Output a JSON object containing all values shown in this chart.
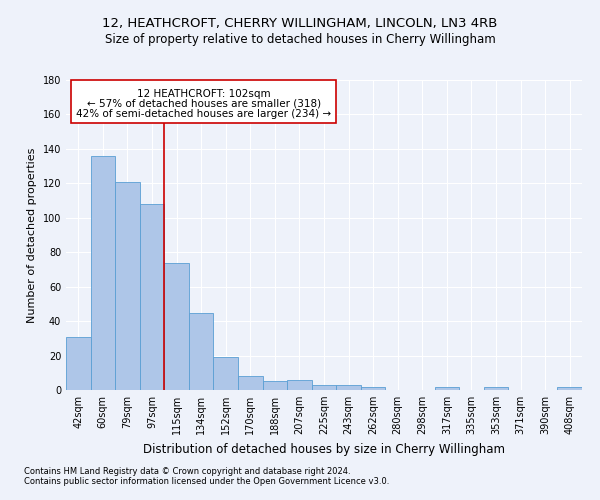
{
  "title1": "12, HEATHCROFT, CHERRY WILLINGHAM, LINCOLN, LN3 4RB",
  "title2": "Size of property relative to detached houses in Cherry Willingham",
  "xlabel": "Distribution of detached houses by size in Cherry Willingham",
  "ylabel": "Number of detached properties",
  "footnote1": "Contains HM Land Registry data © Crown copyright and database right 2024.",
  "footnote2": "Contains public sector information licensed under the Open Government Licence v3.0.",
  "categories": [
    "42sqm",
    "60sqm",
    "79sqm",
    "97sqm",
    "115sqm",
    "134sqm",
    "152sqm",
    "170sqm",
    "188sqm",
    "207sqm",
    "225sqm",
    "243sqm",
    "262sqm",
    "280sqm",
    "298sqm",
    "317sqm",
    "335sqm",
    "353sqm",
    "371sqm",
    "390sqm",
    "408sqm"
  ],
  "values": [
    31,
    136,
    121,
    108,
    74,
    45,
    19,
    8,
    5,
    6,
    3,
    3,
    2,
    0,
    0,
    2,
    0,
    2,
    0,
    0,
    2
  ],
  "bar_color": "#aec6e8",
  "bar_edge_color": "#5a9fd4",
  "vline_x": 3.5,
  "vline_color": "#cc0000",
  "ann_line1": "12 HEATHCROFT: 102sqm",
  "ann_line2": "← 57% of detached houses are smaller (318)",
  "ann_line3": "42% of semi-detached houses are larger (234) →",
  "ylim": [
    0,
    180
  ],
  "yticks": [
    0,
    20,
    40,
    60,
    80,
    100,
    120,
    140,
    160,
    180
  ],
  "background_color": "#eef2fa",
  "grid_color": "#ffffff",
  "title1_fontsize": 9.5,
  "title2_fontsize": 8.5,
  "xlabel_fontsize": 8.5,
  "ylabel_fontsize": 8,
  "annotation_fontsize": 7.5,
  "tick_fontsize": 7
}
